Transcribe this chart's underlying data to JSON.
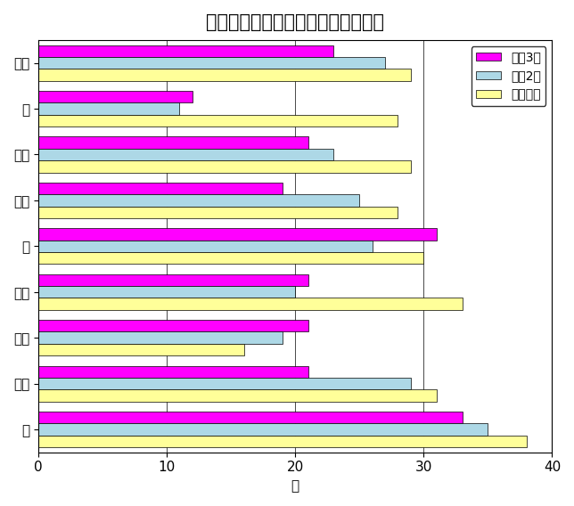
{
  "title": "区別・結核新登録患者数の年次推移",
  "categories": [
    "西",
    "垂水",
    "須磨",
    "長田",
    "北",
    "兵庫",
    "中央",
    "灘",
    "東灘"
  ],
  "series": {
    "令和3年": [
      33,
      21,
      21,
      21,
      31,
      19,
      21,
      12,
      23
    ],
    "令和2年": [
      35,
      29,
      19,
      20,
      26,
      25,
      23,
      11,
      27
    ],
    "令和元年": [
      38,
      31,
      16,
      33,
      30,
      28,
      29,
      28,
      29
    ]
  },
  "colors": {
    "令和3年": "#FF00FF",
    "令和2年": "#ADD8E6",
    "令和元年": "#FFFF99"
  },
  "legend_order": [
    "令和3年",
    "令和2年",
    "令和元年"
  ],
  "xlabel": "人",
  "xlim": [
    0,
    40
  ],
  "xticks": [
    0,
    10,
    20,
    30,
    40
  ],
  "background_color": "#FFFFFF",
  "title_fontsize": 15,
  "axis_fontsize": 11,
  "legend_fontsize": 10,
  "bar_height": 0.26,
  "offsets": [
    0.26,
    0.0,
    -0.26
  ]
}
